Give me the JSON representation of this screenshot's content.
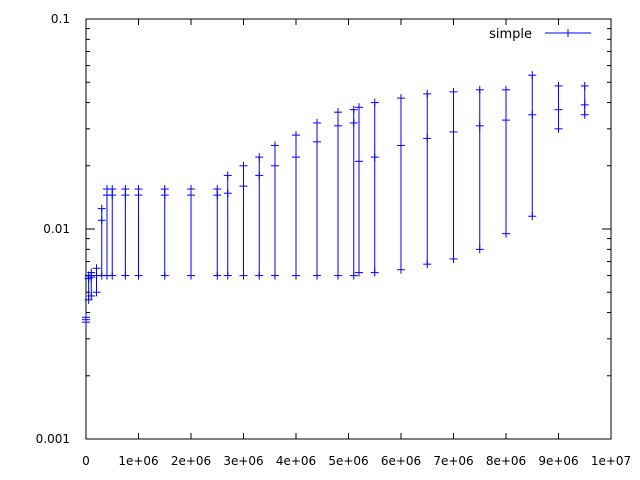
{
  "chart_data": {
    "type": "scatter",
    "title": "",
    "xlabel": "",
    "ylabel": "",
    "xlim": [
      0,
      10000000
    ],
    "ylim": [
      0.001,
      0.1
    ],
    "y_scale": "log",
    "grid": false,
    "legend_position": "top-right",
    "x_ticks": [
      {
        "value": 0,
        "label": "0"
      },
      {
        "value": 1000000,
        "label": "1e+06"
      },
      {
        "value": 2000000,
        "label": "2e+06"
      },
      {
        "value": 3000000,
        "label": "3e+06"
      },
      {
        "value": 4000000,
        "label": "4e+06"
      },
      {
        "value": 5000000,
        "label": "5e+06"
      },
      {
        "value": 6000000,
        "label": "6e+06"
      },
      {
        "value": 7000000,
        "label": "7e+06"
      },
      {
        "value": 8000000,
        "label": "8e+06"
      },
      {
        "value": 9000000,
        "label": "9e+06"
      },
      {
        "value": 10000000,
        "label": "1e+07"
      }
    ],
    "y_ticks": [
      {
        "value": 0.001,
        "label": "0.001"
      },
      {
        "value": 0.01,
        "label": "0.01"
      },
      {
        "value": 0.1,
        "label": "0.1"
      }
    ],
    "series": [
      {
        "name": "simple",
        "color": "#0000ff",
        "marker": "plus",
        "line": "vertical-ranges",
        "x": [
          0,
          50000,
          100000,
          200000,
          300000,
          400000,
          500000,
          750000,
          1000000,
          1500000,
          2000000,
          2500000,
          2700000,
          3000000,
          3300000,
          3600000,
          4000000,
          4400000,
          4800000,
          5100000,
          5200000,
          5500000,
          6000000,
          6500000,
          7000000,
          7500000,
          8000000,
          8500000,
          9000000,
          9500000
        ],
        "y": [
          0.0037,
          0.0058,
          0.0059,
          0.006,
          0.011,
          0.0145,
          0.0145,
          0.0145,
          0.0145,
          0.0145,
          0.0145,
          0.0145,
          0.0148,
          0.016,
          0.018,
          0.02,
          0.022,
          0.026,
          0.031,
          0.032,
          0.021,
          0.022,
          0.025,
          0.027,
          0.029,
          0.031,
          0.033,
          0.035,
          0.037,
          0.039
        ],
        "y_low": [
          0.0036,
          0.0046,
          0.0048,
          0.005,
          0.006,
          0.006,
          0.006,
          0.006,
          0.006,
          0.006,
          0.006,
          0.006,
          0.006,
          0.006,
          0.006,
          0.006,
          0.006,
          0.006,
          0.006,
          0.006,
          0.0062,
          0.0062,
          0.0064,
          0.0068,
          0.0072,
          0.008,
          0.0095,
          0.0115,
          0.03,
          0.035
        ],
        "y_high": [
          0.0038,
          0.006,
          0.0062,
          0.0065,
          0.0125,
          0.0155,
          0.0155,
          0.0155,
          0.0155,
          0.0155,
          0.0155,
          0.0155,
          0.018,
          0.02,
          0.022,
          0.025,
          0.028,
          0.032,
          0.036,
          0.037,
          0.038,
          0.04,
          0.042,
          0.044,
          0.045,
          0.046,
          0.046,
          0.054,
          0.048,
          0.048
        ]
      }
    ]
  }
}
